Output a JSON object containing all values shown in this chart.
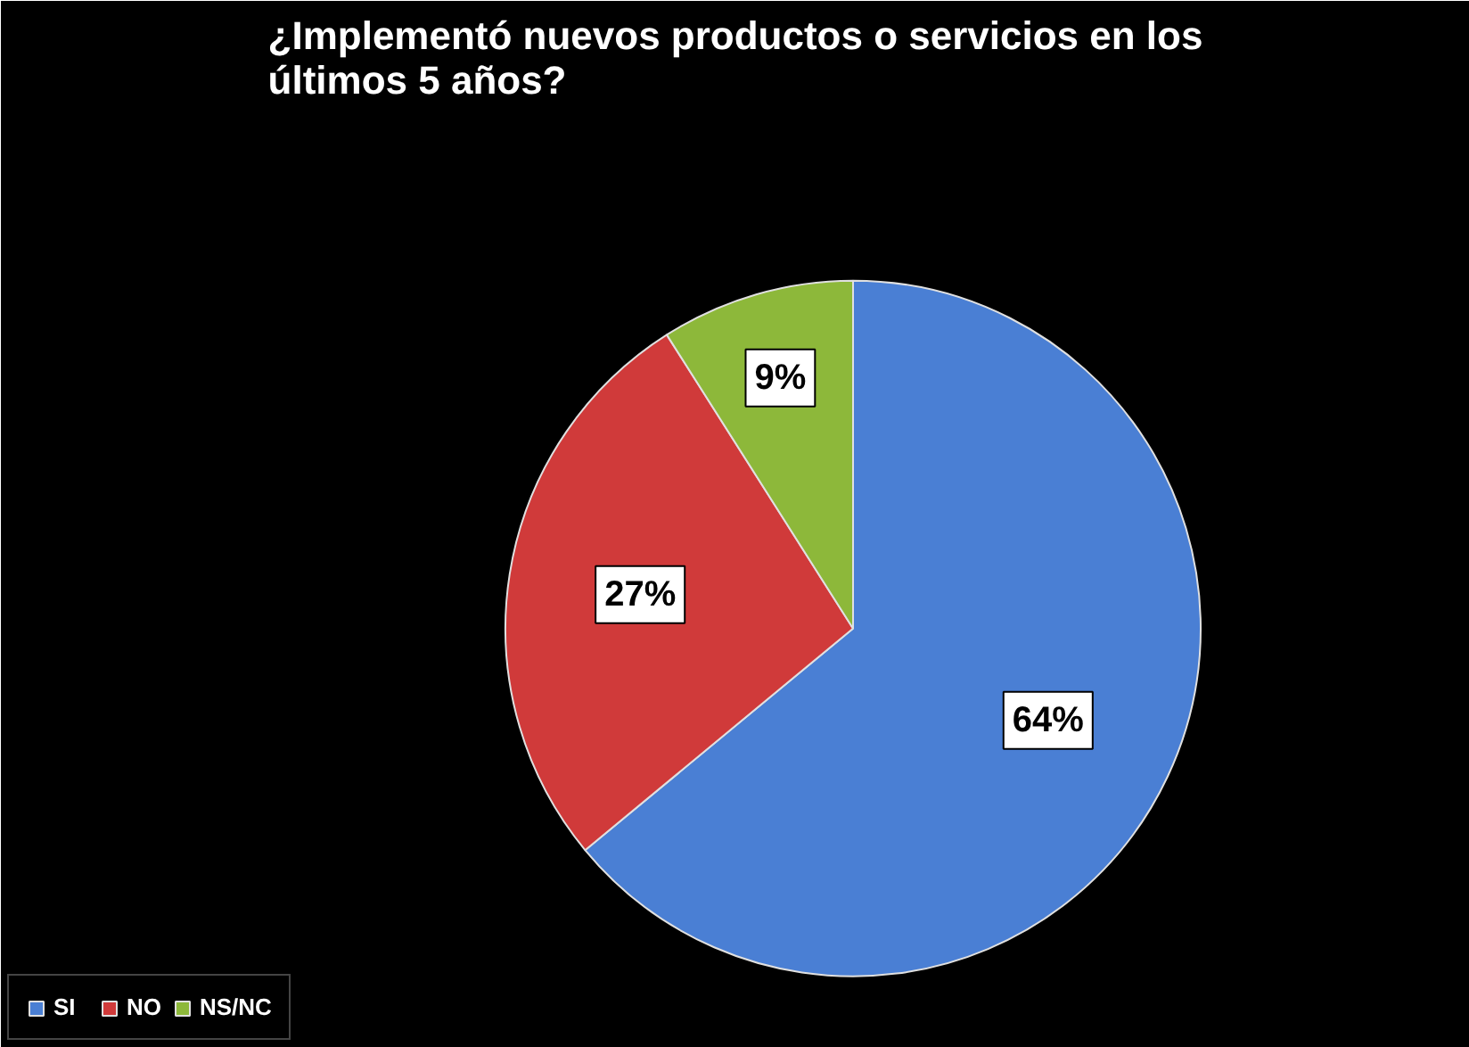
{
  "chart_data": {
    "type": "pie",
    "title": "¿Implementó nuevos productos o servicios en los últimos 5 años?",
    "categories": [
      "SI",
      "NO",
      "NS/NC"
    ],
    "values": [
      64,
      27,
      9
    ],
    "colors": [
      "#4a7fd4",
      "#d03a3a",
      "#8db83a"
    ],
    "value_labels": [
      "64%",
      "27%",
      "9%"
    ],
    "legend": "bottom left"
  }
}
